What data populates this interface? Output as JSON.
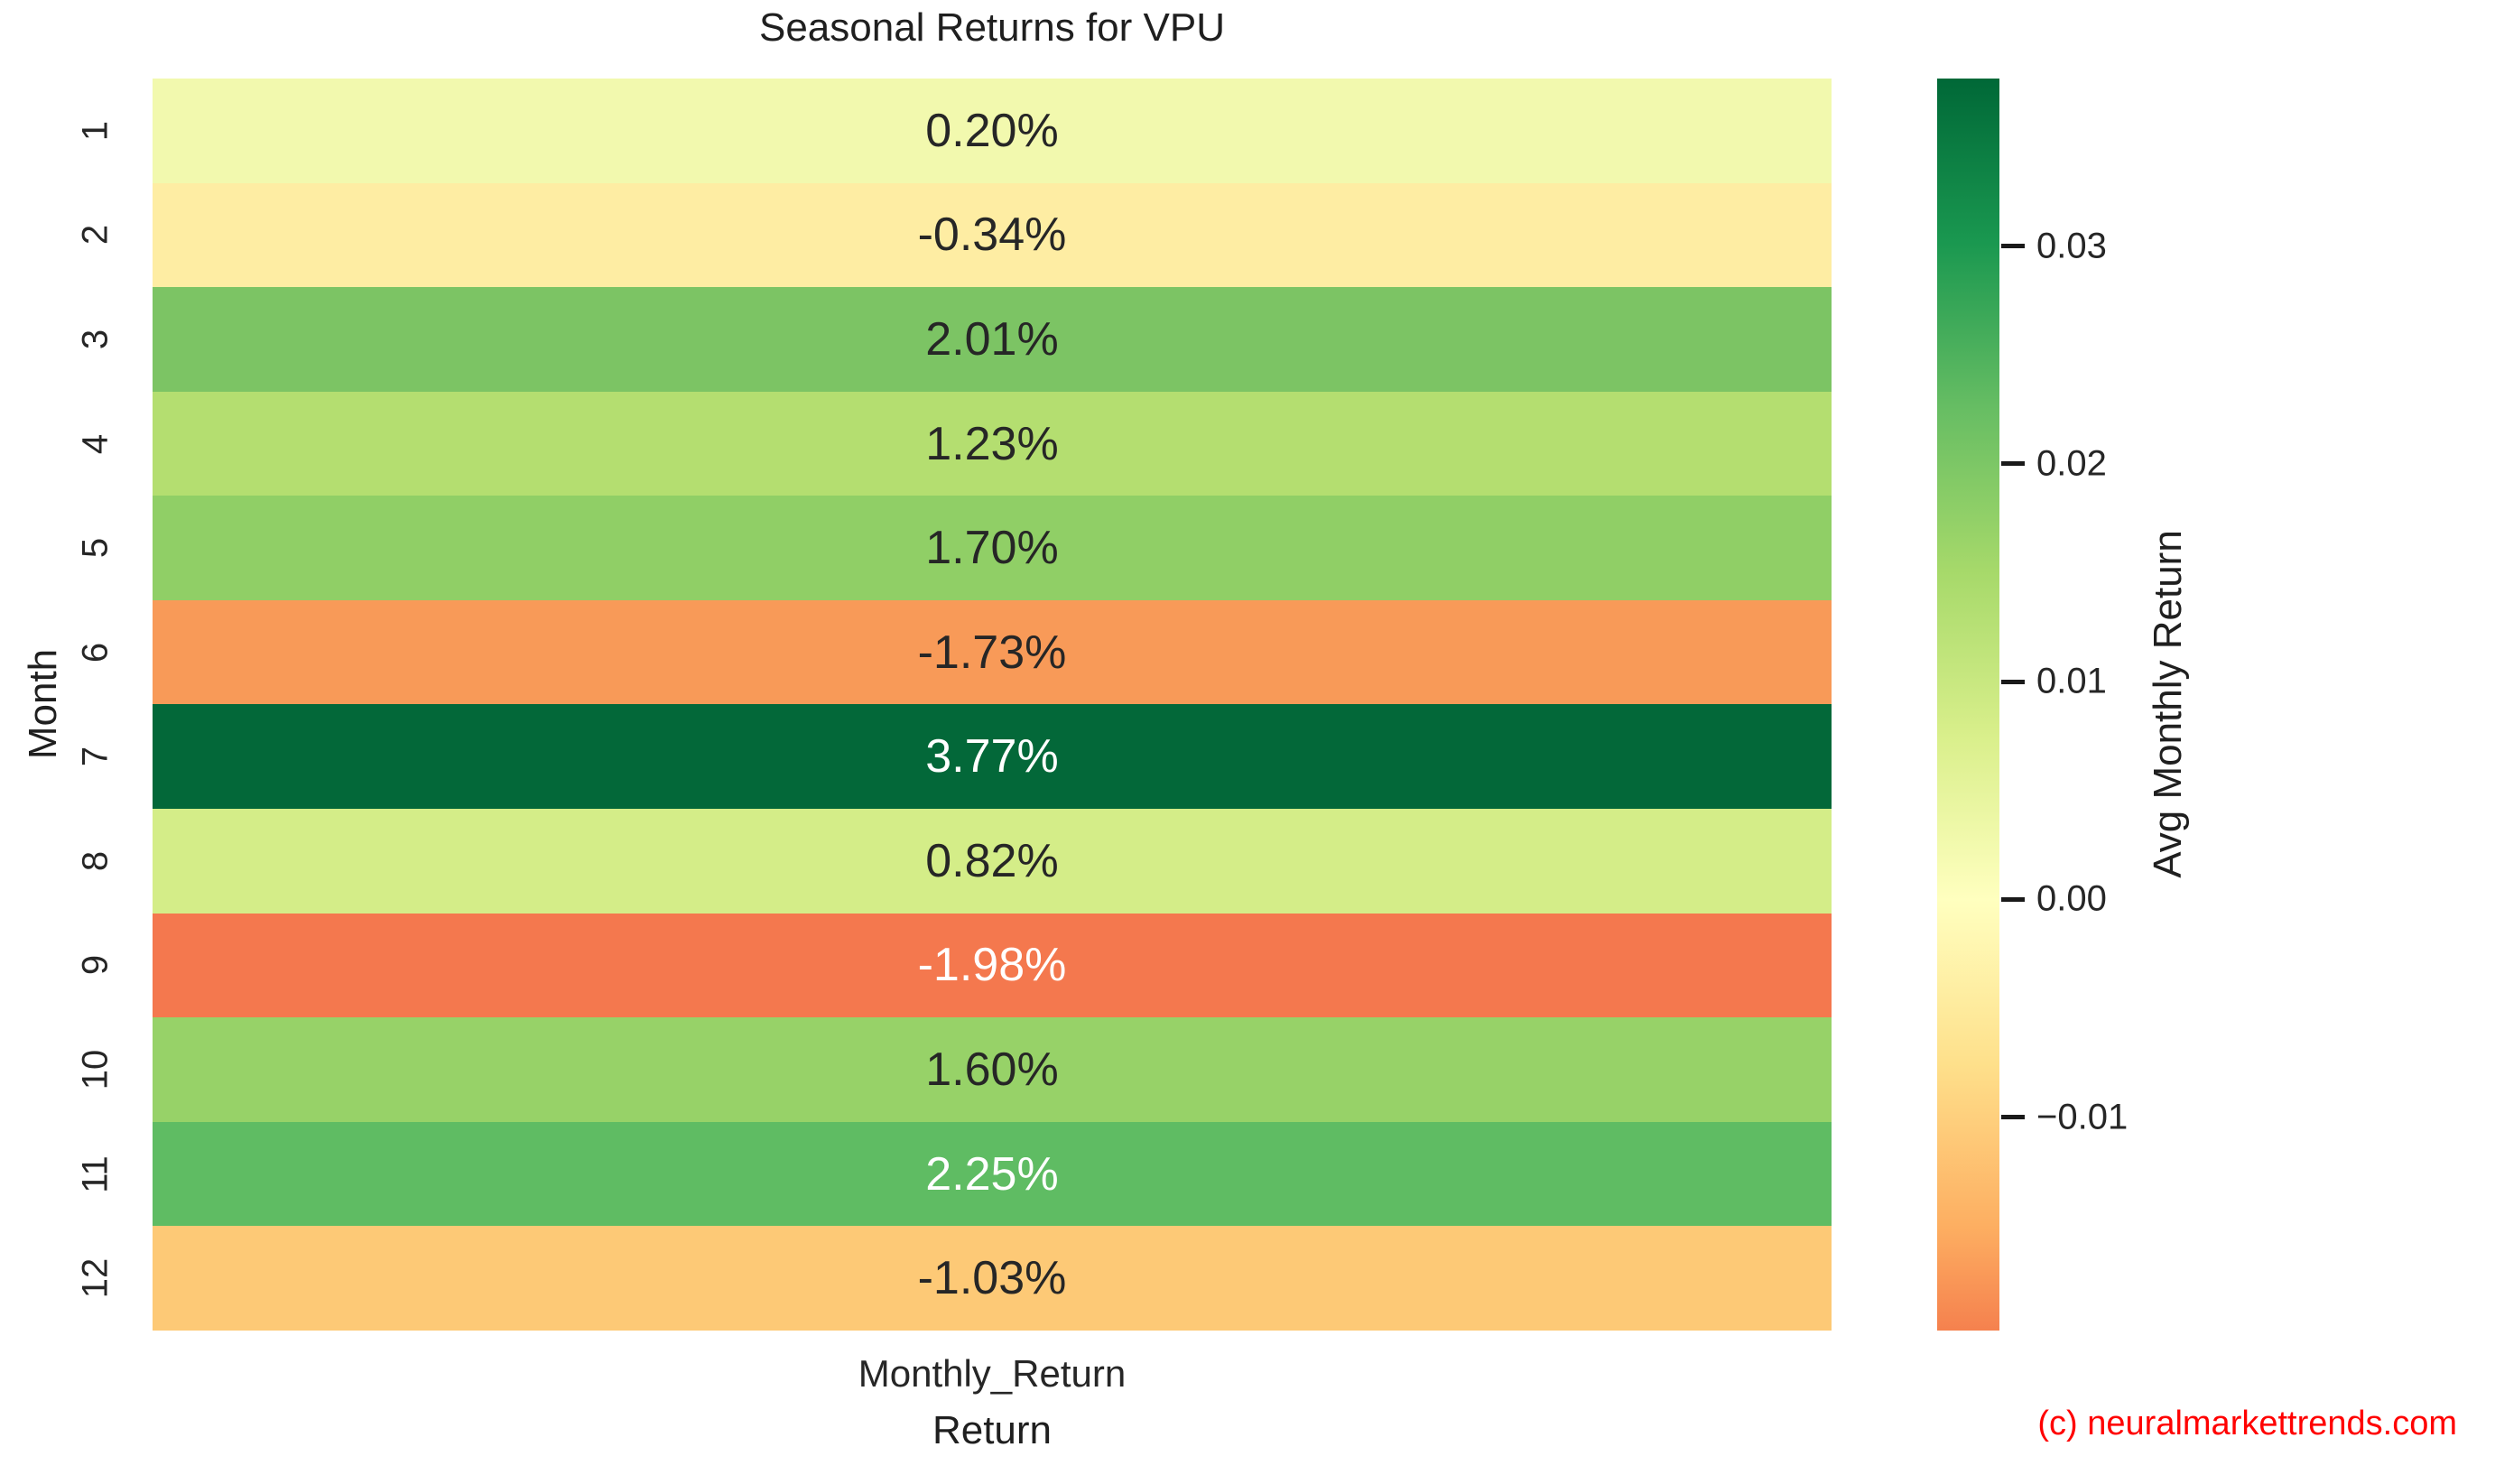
{
  "title": "Seasonal Returns for VPU",
  "watermark": {
    "text": "(c) neuralmarkettrends.com",
    "color": "#ff0000"
  },
  "chart_data": {
    "type": "heatmap",
    "title": "Seasonal Returns for VPU",
    "xlabel": "Return",
    "ylabel": "Month",
    "x_tick_labels": [
      "Monthly_Return"
    ],
    "y_tick_labels": [
      "1",
      "2",
      "3",
      "4",
      "5",
      "6",
      "7",
      "8",
      "9",
      "10",
      "11",
      "12"
    ],
    "cell_labels": [
      "0.20%",
      "-0.34%",
      "2.01%",
      "1.23%",
      "1.70%",
      "-1.73%",
      "3.77%",
      "0.82%",
      "-1.98%",
      "1.60%",
      "2.25%",
      "-1.03%"
    ],
    "values": [
      0.002,
      -0.0034,
      0.0201,
      0.0123,
      0.017,
      -0.0173,
      0.0377,
      0.0082,
      -0.0198,
      0.016,
      0.0225,
      -0.0103
    ],
    "cell_colors": [
      "#f2f9ae",
      "#feeda3",
      "#7cc464",
      "#b4de70",
      "#90cf66",
      "#f89a58",
      "#036839",
      "#d4ed88",
      "#f4784e",
      "#97d268",
      "#5fbc63",
      "#fdc976"
    ],
    "cell_text_colors": [
      "#262626",
      "#262626",
      "#262626",
      "#262626",
      "#262626",
      "#262626",
      "#ffffff",
      "#262626",
      "#ffffff",
      "#262626",
      "#ffffff",
      "#262626"
    ],
    "colormap": "RdYlGn",
    "grid": false,
    "colorbar": {
      "label": "Avg Monthly Return",
      "position": "right",
      "tick_labels": [
        "0.03",
        "0.02",
        "0.01",
        "0.00",
        "−0.01"
      ],
      "tick_values": [
        0.03,
        0.02,
        0.01,
        0.0,
        -0.01
      ],
      "vmin": -0.0198,
      "vmax": 0.0377,
      "gradient_stops": [
        {
          "pos": 0,
          "color": "#f5814e"
        },
        {
          "pos": 8.2,
          "color": "#fdae61"
        },
        {
          "pos": 21.3,
          "color": "#fee08b"
        },
        {
          "pos": 34.4,
          "color": "#ffffbf"
        },
        {
          "pos": 47.5,
          "color": "#d9ef8b"
        },
        {
          "pos": 60.7,
          "color": "#a6d96a"
        },
        {
          "pos": 73.8,
          "color": "#66bd63"
        },
        {
          "pos": 86.9,
          "color": "#1a9850"
        },
        {
          "pos": 100,
          "color": "#006837"
        }
      ]
    }
  }
}
